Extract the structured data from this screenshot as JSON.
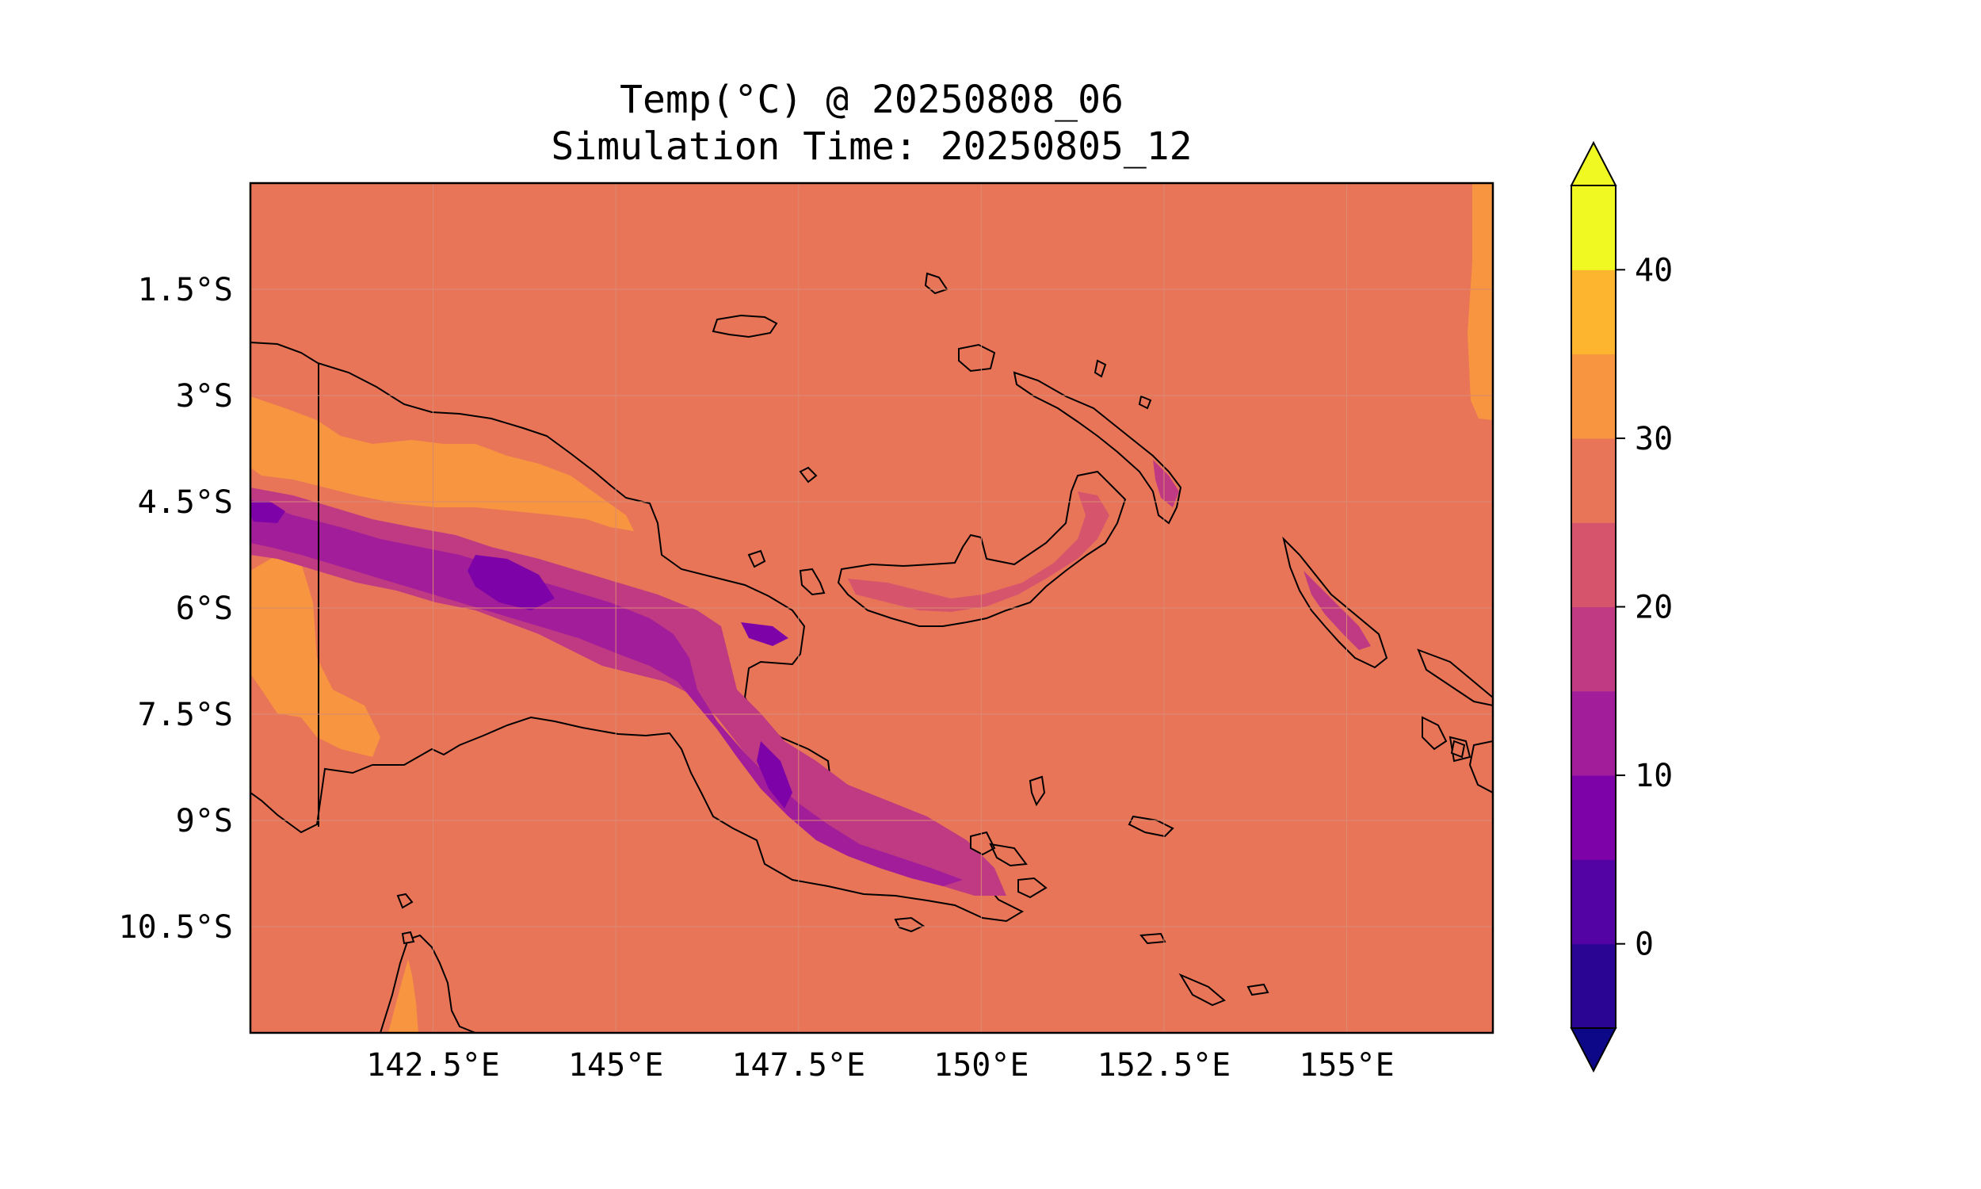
{
  "title": {
    "line1": "Temp(°C) @ 20250808_06",
    "line2": "Simulation Time: 20250805_12"
  },
  "map": {
    "lon_range": [
      140,
      157
    ],
    "lat_range": [
      -12.0,
      0.0
    ],
    "x_ticks": [
      "142.5°E",
      "145°E",
      "147.5°E",
      "150°E",
      "152.5°E",
      "155°E"
    ],
    "x_tick_values": [
      142.5,
      145,
      147.5,
      150,
      152.5,
      155
    ],
    "y_ticks": [
      "1.5°S",
      "3°S",
      "4.5°S",
      "6°S",
      "7.5°S",
      "9°S",
      "10.5°S"
    ],
    "y_tick_values": [
      -1.5,
      -3,
      -4.5,
      -6,
      -7.5,
      -9,
      -10.5
    ],
    "grid": true,
    "ocean_color": "#e97558"
  },
  "colorbar": {
    "levels": [
      -5,
      0,
      5,
      10,
      15,
      20,
      25,
      30,
      35,
      40,
      45
    ],
    "colors": [
      "#2a0593",
      "#5302a3",
      "#7d03a8",
      "#a21d9a",
      "#c03a83",
      "#d6556d",
      "#e97558",
      "#f89540",
      "#fdb42f",
      "#f0f921"
    ],
    "extend_low_color": "#0d0887",
    "extend_high_color": "#f0f921",
    "tick_labels": [
      "0",
      "10",
      "20",
      "30",
      "40"
    ],
    "tick_values": [
      0,
      10,
      20,
      30,
      40
    ]
  }
}
